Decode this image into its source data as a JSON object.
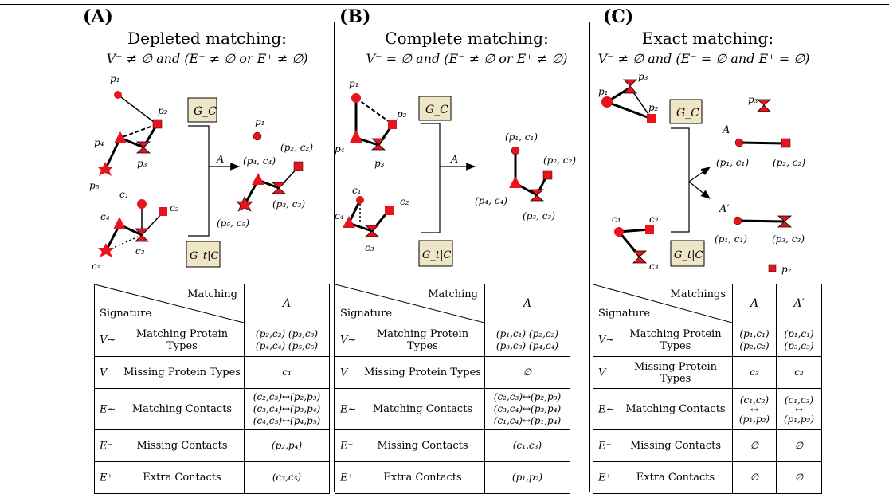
{
  "panels": [
    {
      "label": "(A)",
      "title": "Depleted matching:",
      "condition": "V⁻ ≠ ∅ and (E⁻ ≠ ∅ or E⁺ ≠ ∅)",
      "graph_labels": {
        "gc": "G_C",
        "gtc": "G_t|C",
        "arrow": "A",
        "p1": "p₁",
        "p2": "p₂",
        "p3": "p₃",
        "p4": "p₄",
        "p5": "p₅",
        "c1": "c₁",
        "c2": "c₂",
        "c3": "c₃",
        "c4": "c₄",
        "c5": "c₅",
        "r_p1": "p₁",
        "r_p2c2": "(p₂, c₂)",
        "r_p4c4": "(p₄, c₄)",
        "r_p3c3": "(p₃, c₃)",
        "r_p5c5": "(p₅, c₅)"
      },
      "table": {
        "header_top": "Matching",
        "header_left": "Signature",
        "columns": [
          "A"
        ],
        "rows": [
          {
            "symbol": "V~",
            "desc": "Matching Protein Types",
            "values": [
              "(p₂,c₂) (p₃,c₃)\n(p₄,c₄) (p₅,c₅)"
            ]
          },
          {
            "symbol": "V⁻",
            "desc": "Missing Protein Types",
            "values": [
              "c₁"
            ]
          },
          {
            "symbol": "E~",
            "desc": "Matching Contacts",
            "values": [
              "(c₂,c₃)↔(p₂,p₃)\n(c₃,c₄)↔(p₃,p₄)\n(c₄,c₅)↔(p₄,p₅)"
            ]
          },
          {
            "symbol": "E⁻",
            "desc": "Missing Contacts",
            "values": [
              "(p₂,p₄)"
            ]
          },
          {
            "symbol": "E⁺",
            "desc": "Extra Contacts",
            "values": [
              "(c₃,c₅)"
            ]
          }
        ]
      }
    },
    {
      "label": "(B)",
      "title": "Complete matching:",
      "condition": "V⁻ = ∅ and (E⁻ ≠ ∅ or E⁺ ≠ ∅)",
      "graph_labels": {
        "gc": "G_C",
        "gtc": "G_t|C",
        "arrow": "A",
        "p1": "p₁",
        "p2": "p₂",
        "p3": "p₃",
        "p4": "p₄",
        "c1": "c₁",
        "c2": "c₂",
        "c3": "c₃",
        "c4": "c₄",
        "r_p1c1": "(p₁, c₁)",
        "r_p2c2": "(p₂, c₂)",
        "r_p4c4": "(p₄, c₄)",
        "r_p3c3": "(p₃, c₃)"
      },
      "table": {
        "header_top": "Matching",
        "header_left": "Signature",
        "columns": [
          "A"
        ],
        "rows": [
          {
            "symbol": "V~",
            "desc": "Matching Protein Types",
            "values": [
              "(p₁,c₁) (p₂,c₂)\n(p₃,c₃) (p₄,c₄)"
            ]
          },
          {
            "symbol": "V⁻",
            "desc": "Missing Protein Types",
            "values": [
              "∅"
            ]
          },
          {
            "symbol": "E~",
            "desc": "Matching Contacts",
            "values": [
              "(c₂,c₃)↔(p₂,p₃)\n(c₃,c₄)↔(p₃,p₄)\n(c₁,c₄)↔(p₁,p₄)"
            ]
          },
          {
            "symbol": "E⁻",
            "desc": "Missing Contacts",
            "values": [
              "(c₁,c₃)"
            ]
          },
          {
            "symbol": "E⁺",
            "desc": "Extra Contacts",
            "values": [
              "(p₁,p₂)"
            ]
          }
        ]
      }
    },
    {
      "label": "(C)",
      "title": "Exact matching:",
      "condition": "V⁻ ≠ ∅ and (E⁻ = ∅ and E⁺ = ∅)",
      "graph_labels": {
        "gc": "G_C",
        "gtc": "G_t|C",
        "arrow1": "A",
        "arrow2": "A′",
        "p1": "p₁",
        "p2": "p₂",
        "p3": "p₃",
        "c1": "c₁",
        "c2": "c₂",
        "c3": "c₃",
        "r_p3": "p₃",
        "r_p1c1": "(p₁, c₁)",
        "r_p2c2": "(p₂, c₂)",
        "r2_p1c1": "(p₁, c₁)",
        "r2_p3c3": "(p₃, c₃)",
        "r2_p2": "p₂"
      },
      "table": {
        "header_top": "Matchings",
        "header_left": "Signature",
        "columns": [
          "A",
          "A′"
        ],
        "rows": [
          {
            "symbol": "V~",
            "desc": "Matching Protein Types",
            "values": [
              "(p₁,c₁)\n(p₂,c₂)",
              "(p₁,c₁)\n(p₃,c₃)"
            ]
          },
          {
            "symbol": "V⁻",
            "desc": "Missing Protein Types",
            "values": [
              "c₃",
              "c₂"
            ]
          },
          {
            "symbol": "E~",
            "desc": "Matching Contacts",
            "values": [
              "(c₁,c₂)\n↔\n(p₁,p₂)",
              "(c₁,c₃)\n↔\n(p₁,p₃)"
            ]
          },
          {
            "symbol": "E⁻",
            "desc": "Missing Contacts",
            "values": [
              "∅",
              "∅"
            ]
          },
          {
            "symbol": "E⁺",
            "desc": "Extra Contacts",
            "values": [
              "∅",
              "∅"
            ]
          }
        ]
      }
    }
  ],
  "colors": {
    "node": "#e8131c",
    "box_fill": "#efe6c8"
  }
}
